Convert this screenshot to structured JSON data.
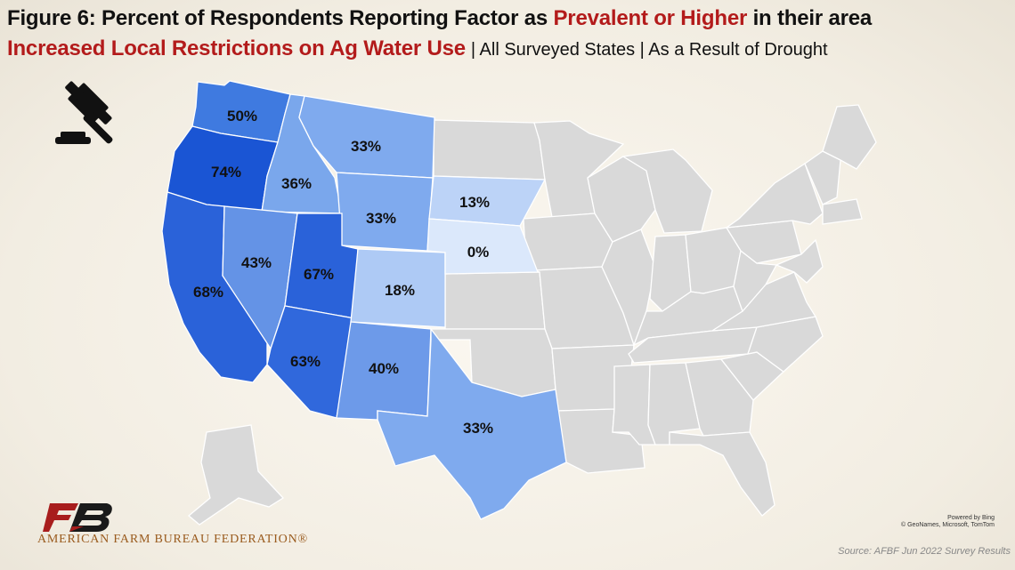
{
  "title": {
    "prefix": "Figure 6: Percent of Respondents Reporting Factor as",
    "highlight": "Prevalent or Higher",
    "suffix": "in their area"
  },
  "subtitle": {
    "factor": "Increased Local Restrictions on Ag Water Use",
    "details": "| All Surveyed States | As a Result of Drought"
  },
  "colors": {
    "highlight_red": "#b31b1b",
    "no_data": "#d9d9d9",
    "scale_low": "#dbe8fb",
    "scale_high": "#1a55d4"
  },
  "states": [
    {
      "name": "Washington",
      "value": "50%",
      "color": "#3f7ae0"
    },
    {
      "name": "Oregon",
      "value": "74%",
      "color": "#1a55d4"
    },
    {
      "name": "California",
      "value": "68%",
      "color": "#2a62d9"
    },
    {
      "name": "Idaho",
      "value": "36%",
      "color": "#7aa7ec"
    },
    {
      "name": "Nevada",
      "value": "43%",
      "color": "#6493e6"
    },
    {
      "name": "Montana",
      "value": "33%",
      "color": "#7faaee"
    },
    {
      "name": "Wyoming",
      "value": "33%",
      "color": "#7faaee"
    },
    {
      "name": "Utah",
      "value": "67%",
      "color": "#2a62d9"
    },
    {
      "name": "Arizona",
      "value": "63%",
      "color": "#3068dc"
    },
    {
      "name": "Colorado",
      "value": "18%",
      "color": "#aecaf5"
    },
    {
      "name": "New Mexico",
      "value": "40%",
      "color": "#6d9ae9"
    },
    {
      "name": "South Dakota",
      "value": "13%",
      "color": "#bcd3f7"
    },
    {
      "name": "Nebraska",
      "value": "0%",
      "color": "#dbe8fb"
    },
    {
      "name": "Texas",
      "value": "33%",
      "color": "#7faaee"
    }
  ],
  "icon": "gavel-icon",
  "organization": "AMERICAN FARM BUREAU FEDERATION®",
  "map_credit": {
    "line1": "Powered by Bing",
    "line2": "© GeoNames, Microsoft, TomTom"
  },
  "source": "Source: AFBF Jun 2022 Survey Results"
}
